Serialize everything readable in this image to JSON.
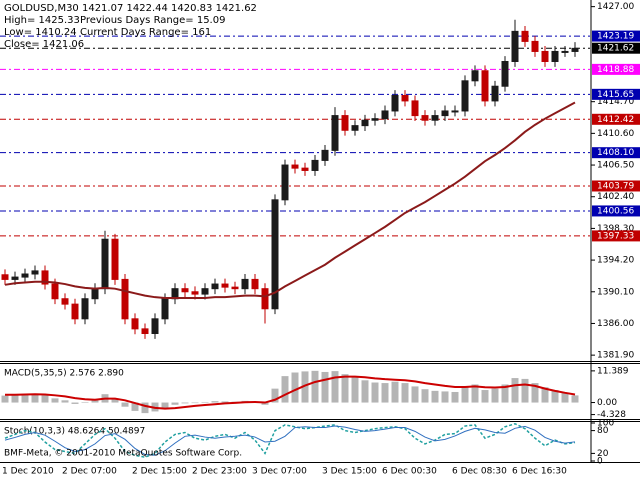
{
  "header": {
    "symbol_line": "GOLDUSD,M30  1421.07 1422.44 1420.83 1421.62",
    "high": "High= 1425.33",
    "prev_range": "Previous Days Range= 15.09",
    "low": "Low= 1410.24",
    "cur_range": "Current Days Range= 161",
    "close": "Close= 1421.06"
  },
  "footer": "BMF-Meta, © 2001-2010 MetaQuotes Software Corp.",
  "chart_data": [
    {
      "type": "candlestick",
      "categories": [
        "1 Dec 2010",
        null,
        null,
        null,
        null,
        null,
        "2 Dec 07:00",
        null,
        null,
        null,
        null,
        null,
        null,
        "2 Dec 15:00",
        null,
        null,
        null,
        null,
        null,
        "2 Dec 23:00",
        null,
        null,
        null,
        null,
        null,
        "3 Dec 07:00",
        null,
        null,
        null,
        null,
        null,
        null,
        "3 Dec 15:00",
        null,
        null,
        null,
        null,
        null,
        "6 Dec 00:30",
        null,
        null,
        null,
        null,
        null,
        null,
        "6 Dec 08:30",
        null,
        null,
        null,
        null,
        null,
        "6 Dec 16:30",
        null,
        null,
        null,
        null,
        null,
        null
      ],
      "open": [
        1392.3,
        1391.7,
        1392.0,
        1392.4,
        1392.8,
        1391.1,
        1389.2,
        1388.5,
        1386.6,
        1389.2,
        1390.5,
        1396.9,
        1391.7,
        1386.6,
        1385.3,
        1384.7,
        1386.6,
        1389.2,
        1390.5,
        1390.1,
        1389.8,
        1390.5,
        1391.1,
        1390.7,
        1390.5,
        1391.7,
        1390.5,
        1387.9,
        1402.0,
        1406.5,
        1406.1,
        1405.8,
        1407.1,
        1408.4,
        1412.9,
        1411.0,
        1411.6,
        1412.3,
        1412.5,
        1413.5,
        1415.5,
        1414.8,
        1412.9,
        1412.3,
        1412.9,
        1413.5,
        1413.5,
        1417.4,
        1418.7,
        1414.8,
        1416.7,
        1419.9,
        1423.8,
        1422.5,
        1421.2,
        1419.9,
        1421.2,
        1421.2
      ],
      "high": [
        1393.0,
        1392.7,
        1393.1,
        1393.5,
        1393.5,
        1391.8,
        1389.9,
        1389.2,
        1389.9,
        1391.2,
        1398.0,
        1397.6,
        1392.4,
        1387.3,
        1386.0,
        1387.3,
        1389.9,
        1391.2,
        1391.2,
        1390.8,
        1391.2,
        1391.8,
        1391.8,
        1391.4,
        1392.4,
        1392.4,
        1391.2,
        1402.7,
        1407.2,
        1407.2,
        1406.8,
        1407.8,
        1409.1,
        1414.0,
        1413.6,
        1412.3,
        1413.0,
        1413.2,
        1414.2,
        1416.2,
        1416.2,
        1415.5,
        1413.6,
        1413.6,
        1414.2,
        1414.2,
        1418.1,
        1419.4,
        1419.4,
        1417.4,
        1420.6,
        1425.3,
        1424.5,
        1423.2,
        1421.9,
        1421.9,
        1421.9,
        1422.4
      ],
      "low": [
        1391.0,
        1391.0,
        1391.3,
        1391.7,
        1390.4,
        1388.5,
        1387.8,
        1385.9,
        1385.9,
        1388.5,
        1389.8,
        1391.0,
        1385.9,
        1384.6,
        1384.0,
        1384.0,
        1385.9,
        1388.5,
        1389.4,
        1389.1,
        1389.1,
        1389.8,
        1390.0,
        1389.8,
        1389.8,
        1389.8,
        1386.0,
        1387.2,
        1401.3,
        1405.4,
        1405.1,
        1405.1,
        1406.4,
        1407.7,
        1410.3,
        1410.3,
        1410.9,
        1411.6,
        1411.8,
        1412.8,
        1414.1,
        1412.2,
        1411.6,
        1411.6,
        1412.2,
        1412.8,
        1412.8,
        1416.7,
        1414.1,
        1414.1,
        1416.0,
        1419.2,
        1421.8,
        1420.5,
        1419.2,
        1419.2,
        1420.5,
        1420.5
      ],
      "close": [
        1391.7,
        1392.0,
        1392.4,
        1392.8,
        1391.1,
        1389.2,
        1388.5,
        1386.6,
        1389.2,
        1390.5,
        1396.9,
        1391.7,
        1386.6,
        1385.3,
        1384.7,
        1386.6,
        1389.2,
        1390.5,
        1390.1,
        1389.8,
        1390.5,
        1391.1,
        1390.7,
        1390.5,
        1391.7,
        1390.5,
        1387.9,
        1402.0,
        1406.5,
        1406.1,
        1405.8,
        1407.1,
        1408.4,
        1412.9,
        1411.0,
        1411.6,
        1412.3,
        1412.5,
        1413.5,
        1415.5,
        1414.8,
        1412.9,
        1412.3,
        1412.9,
        1413.5,
        1413.5,
        1417.4,
        1418.7,
        1414.8,
        1416.7,
        1419.9,
        1423.8,
        1422.5,
        1421.2,
        1419.9,
        1421.2,
        1421.2,
        1421.6
      ],
      "up_color": "#1a1a1a",
      "down_color": "#c00000",
      "series": [
        {
          "color": "#8b1a1a",
          "values": [
            1391.0,
            1391.2,
            1391.3,
            1391.4,
            1391.4,
            1391.3,
            1391.1,
            1390.8,
            1390.6,
            1390.5,
            1390.6,
            1390.5,
            1390.2,
            1389.9,
            1389.6,
            1389.4,
            1389.3,
            1389.3,
            1389.3,
            1389.3,
            1389.3,
            1389.4,
            1389.4,
            1389.5,
            1389.6,
            1389.6,
            1389.5,
            1390.0,
            1390.8,
            1391.5,
            1392.2,
            1392.9,
            1393.6,
            1394.5,
            1395.3,
            1396.1,
            1396.9,
            1397.7,
            1398.5,
            1399.4,
            1400.3,
            1401.0,
            1401.7,
            1402.5,
            1403.3,
            1404.1,
            1405.0,
            1406.0,
            1407.0,
            1407.8,
            1408.7,
            1409.7,
            1410.8,
            1411.7,
            1412.5,
            1413.2,
            1413.9,
            1414.6
          ]
        }
      ],
      "ylim": [
        1381.4,
        1427.6
      ],
      "yticks": [
        {
          "value": 1427,
          "label": "1427.00"
        },
        {
          "value": 1414.7,
          "label": "1414.70"
        },
        {
          "value": 1410.6,
          "label": "1410.60"
        },
        {
          "value": 1406.5,
          "label": "1406.50"
        },
        {
          "value": 1402.4,
          "label": "1402.40"
        },
        {
          "value": 1398.3,
          "label": "1398.30"
        },
        {
          "value": 1394.2,
          "label": "1394.20"
        },
        {
          "value": 1390.1,
          "label": "1390.10"
        },
        {
          "value": 1386,
          "label": "1386.00"
        },
        {
          "value": 1381.9,
          "label": "1381.90"
        }
      ],
      "levels": [
        {
          "value": 1423.19,
          "color": "#0000b0"
        },
        {
          "value": 1421.62,
          "color": "#000000"
        },
        {
          "value": 1418.88,
          "color": "#ff00ff"
        },
        {
          "value": 1415.65,
          "color": "#0000b0"
        },
        {
          "value": 1412.42,
          "color": "#c00000"
        },
        {
          "value": 1408.1,
          "label": "1408.10",
          "color": "#0000b0"
        },
        {
          "value": 1403.79,
          "color": "#c00000"
        },
        {
          "value": 1400.56,
          "color": "#0000b0"
        },
        {
          "value": 1397.33,
          "color": "#c00000"
        }
      ]
    },
    {
      "type": "macd",
      "title": "MACD(5,35,5) 2.576 2.890",
      "series": [
        {
          "kind": "bar",
          "color": "#b4b4b4",
          "values": [
            2.5,
            2.8,
            3.0,
            3.2,
            2.6,
            1.5,
            0.8,
            -0.5,
            0.2,
            0.8,
            3.0,
            1.5,
            -1.5,
            -3.0,
            -3.8,
            -3.2,
            -2.0,
            -0.8,
            -0.3,
            -0.2,
            0.2,
            0.5,
            0.4,
            0.3,
            0.6,
            0.3,
            -0.8,
            5.0,
            9.5,
            10.8,
            11.2,
            11.4,
            11.0,
            11.3,
            10.2,
            9.0,
            8.0,
            7.2,
            7.0,
            7.5,
            7.0,
            5.8,
            4.8,
            4.2,
            4.0,
            3.8,
            5.5,
            6.5,
            4.5,
            5.0,
            6.5,
            8.8,
            8.5,
            7.0,
            5.5,
            4.5,
            3.5,
            2.576
          ]
        },
        {
          "kind": "line",
          "color": "#cc0000",
          "values": [
            2.8,
            2.8,
            2.9,
            3.0,
            2.9,
            2.6,
            2.2,
            1.6,
            1.2,
            1.0,
            1.4,
            1.4,
            0.8,
            -0.2,
            -1.2,
            -1.9,
            -2.2,
            -2.0,
            -1.6,
            -1.2,
            -0.9,
            -0.6,
            -0.3,
            -0.1,
            0.1,
            0.2,
            0.0,
            1.0,
            2.8,
            4.5,
            6.1,
            7.4,
            8.2,
            9.0,
            9.3,
            9.3,
            9.1,
            8.7,
            8.4,
            8.2,
            8.0,
            7.6,
            7.0,
            6.5,
            6.0,
            5.6,
            5.6,
            5.8,
            5.5,
            5.4,
            5.6,
            6.2,
            6.5,
            6.0,
            5.0,
            4.2,
            3.5,
            2.89
          ]
        }
      ],
      "ylim": [
        -5.2,
        13.5
      ],
      "yticks": [
        11.389,
        {
          "value": 0,
          "label": "0.00"
        },
        -4.328
      ]
    },
    {
      "type": "line",
      "title": "Stoch(10,3,3) 48.6264 50.4897",
      "series": [
        {
          "color": "#20a0a0",
          "dashed": true,
          "values": [
            60,
            70,
            80,
            75,
            50,
            30,
            25,
            20,
            45,
            70,
            85,
            60,
            25,
            15,
            10,
            20,
            50,
            70,
            75,
            60,
            55,
            65,
            70,
            60,
            75,
            55,
            20,
            80,
            95,
            90,
            85,
            88,
            92,
            95,
            80,
            75,
            80,
            85,
            88,
            90,
            85,
            60,
            45,
            55,
            70,
            72,
            92,
            95,
            60,
            70,
            90,
            98,
            85,
            60,
            40,
            55,
            45,
            48.6264
          ]
        },
        {
          "color": "#3070c0",
          "dashed": false,
          "values": [
            55,
            62,
            70,
            75,
            68,
            52,
            35,
            25,
            30,
            45,
            67,
            72,
            57,
            33,
            17,
            15,
            27,
            47,
            65,
            68,
            63,
            60,
            63,
            65,
            68,
            63,
            50,
            52,
            65,
            88,
            90,
            88,
            88,
            92,
            89,
            83,
            78,
            80,
            84,
            88,
            88,
            78,
            63,
            53,
            57,
            66,
            78,
            86,
            82,
            75,
            73,
            86,
            91,
            81,
            62,
            52,
            47,
            50.4897
          ]
        }
      ],
      "ylim": [
        0,
        100
      ],
      "yticks": [
        100,
        80,
        20,
        0
      ]
    }
  ]
}
